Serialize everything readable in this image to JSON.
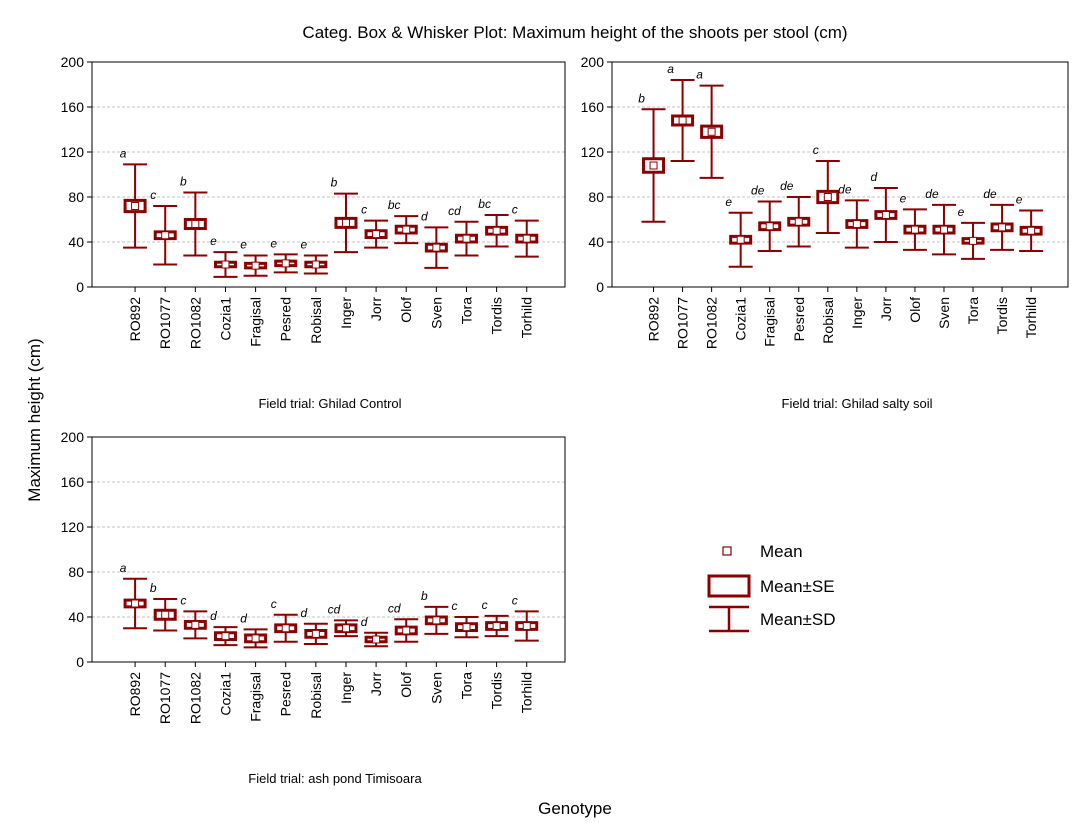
{
  "figure": {
    "title": "Categ. Box & Whisker Plot: Maximum height of the shoots per stool  (cm)",
    "ylabel": "Maximum height (cm)",
    "xlabel": "Genotype",
    "legend": [
      "Mean",
      "Mean±SE",
      "Mean±SD"
    ]
  },
  "chart_data": [
    {
      "type": "box",
      "subtitle": "Field trial: Ghilad Control",
      "color": "#8b0000",
      "grid": true,
      "categories": [
        "RO892",
        "RO1077",
        "RO1082",
        "Cozia1",
        "Fragisal",
        "Pesred",
        "Robisal",
        "Inger",
        "Jorr",
        "Olof",
        "Sven",
        "Tora",
        "Tordis",
        "Torhild"
      ],
      "mean": [
        72,
        46,
        56,
        20,
        19,
        21,
        20,
        57,
        47,
        51,
        35,
        43,
        50,
        43
      ],
      "se": [
        5,
        3,
        4,
        2,
        2,
        2,
        2,
        4,
        3,
        3,
        3,
        3,
        3,
        3
      ],
      "sd": [
        37,
        26,
        28,
        11,
        9,
        8,
        8,
        26,
        12,
        12,
        18,
        15,
        14,
        16
      ],
      "letters": [
        "a",
        "c",
        "b",
        "e",
        "e",
        "e",
        "e",
        "b",
        "c",
        "bc",
        "d",
        "cd",
        "bc",
        "c"
      ],
      "ylim": [
        0,
        200
      ],
      "yticks": [
        0,
        40,
        80,
        120,
        160,
        200
      ]
    },
    {
      "type": "box",
      "subtitle": "Field trial: Ghilad salty soil",
      "color": "#8b0000",
      "grid": true,
      "categories": [
        "RO892",
        "RO1077",
        "RO1082",
        "Cozia1",
        "Fragisal",
        "Pesred",
        "Robisal",
        "Inger",
        "Jorr",
        "Olof",
        "Sven",
        "Tora",
        "Tordis",
        "Torhild"
      ],
      "mean": [
        108,
        148,
        138,
        42,
        54,
        58,
        80,
        56,
        64,
        51,
        51,
        41,
        53,
        50
      ],
      "se": [
        6,
        4,
        5,
        3,
        3,
        3,
        5,
        3,
        3,
        3,
        3,
        2,
        3,
        3
      ],
      "sd": [
        50,
        36,
        41,
        24,
        22,
        22,
        32,
        21,
        24,
        18,
        22,
        16,
        20,
        18
      ],
      "letters": [
        "b",
        "a",
        "a",
        "e",
        "de",
        "de",
        "c",
        "de",
        "d",
        "e",
        "de",
        "e",
        "de",
        "e"
      ],
      "ylim": [
        0,
        200
      ],
      "yticks": [
        0,
        40,
        80,
        120,
        160,
        200
      ]
    },
    {
      "type": "box",
      "subtitle": "Field trial: ash pond Timisoara",
      "color": "#8b0000",
      "grid": true,
      "categories": [
        "RO892",
        "RO1077",
        "RO1082",
        "Cozia1",
        "Fragisal",
        "Pesred",
        "Robisal",
        "Inger",
        "Jorr",
        "Olof",
        "Sven",
        "Tora",
        "Tordis",
        "Torhild"
      ],
      "mean": [
        52,
        42,
        33,
        23,
        21,
        30,
        25,
        30,
        20,
        28,
        37,
        31,
        32,
        32
      ],
      "se": [
        3,
        4,
        3,
        3,
        3,
        3,
        3,
        3,
        2,
        3,
        3,
        3,
        3,
        3
      ],
      "sd": [
        22,
        14,
        12,
        8,
        8,
        12,
        9,
        7,
        6,
        10,
        12,
        9,
        9,
        13
      ],
      "letters": [
        "a",
        "b",
        "c",
        "d",
        "d",
        "c",
        "d",
        "cd",
        "d",
        "cd",
        "b",
        "c",
        "c",
        "c"
      ],
      "ylim": [
        0,
        200
      ],
      "yticks": [
        0,
        40,
        80,
        120,
        160,
        200
      ]
    }
  ]
}
